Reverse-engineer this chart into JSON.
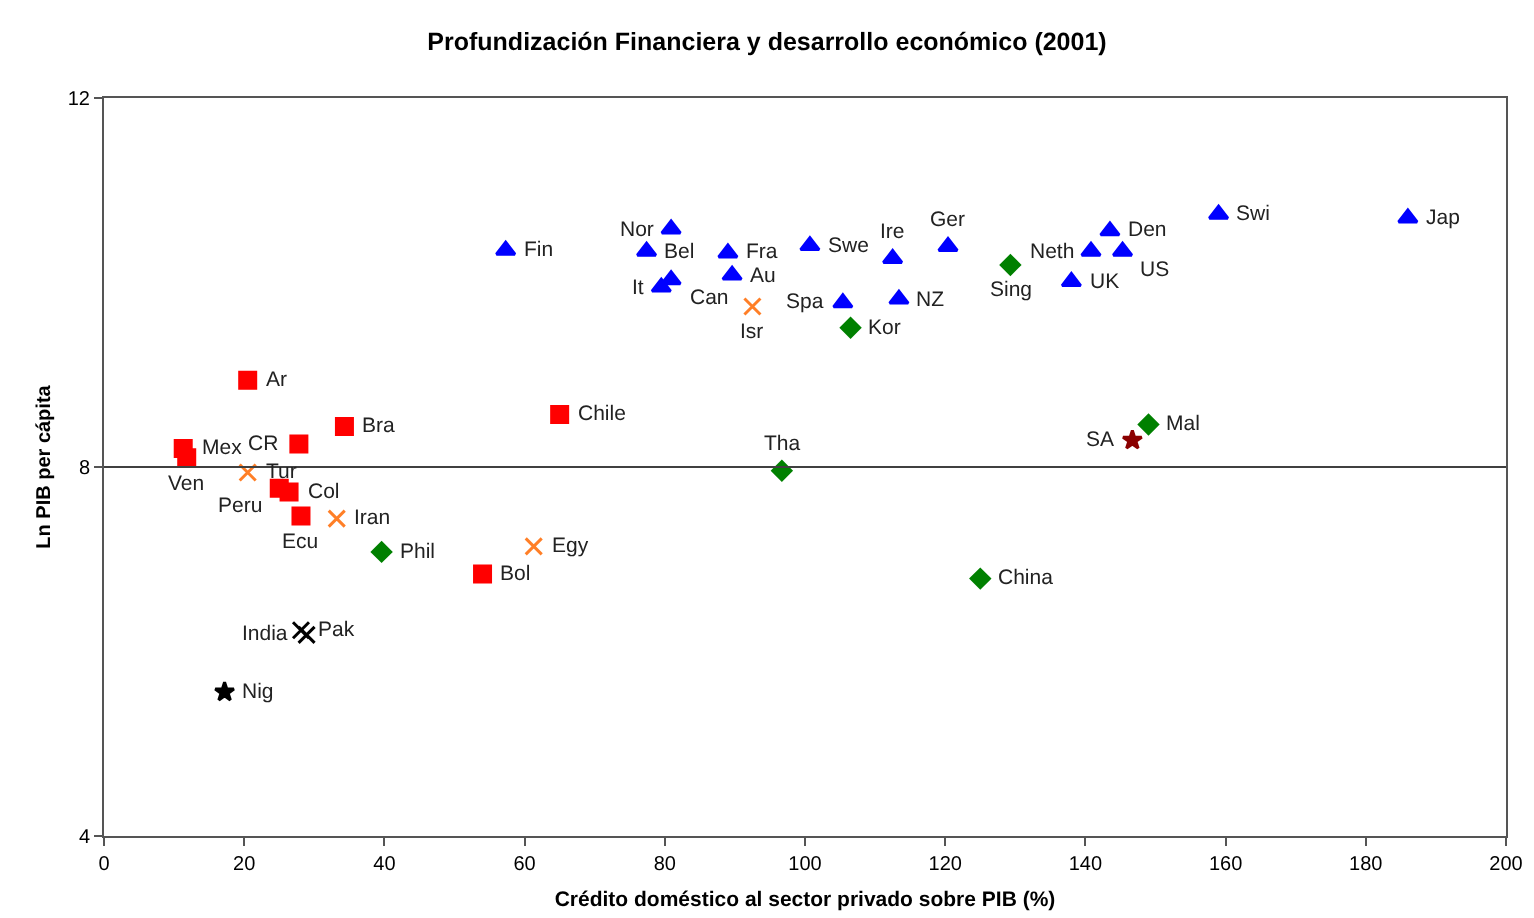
{
  "chart_data": {
    "type": "scatter",
    "title": "Profundización Financiera y desarrollo económico (2001)",
    "xlabel": "Crédito doméstico al sector privado sobre PIB (%)",
    "ylabel": "Ln PIB per cápita",
    "xlim": [
      0,
      200
    ],
    "xticks": [
      0,
      20,
      40,
      60,
      80,
      100,
      120,
      140,
      160,
      180,
      200
    ],
    "ylim": [
      4,
      12
    ],
    "yticks": [
      4,
      8,
      12
    ],
    "grid": false,
    "ref_lines": [
      {
        "axis": "y",
        "value": 8,
        "color": "#404040"
      }
    ],
    "series": [
      {
        "color": "#ff0000",
        "marker": "square",
        "x": [
          20.5,
          11.3,
          11.8,
          27.8,
          34.3,
          65.0,
          25.0,
          26.4,
          28.1,
          54.0
        ],
        "values": [
          8.94,
          8.2,
          8.1,
          8.25,
          8.44,
          8.57,
          7.77,
          7.73,
          7.47,
          6.84
        ]
      },
      {
        "color": "#0000ff",
        "marker": "triangle",
        "x": [
          57.3,
          77.4,
          80.9,
          79.5,
          80.9,
          89.0,
          89.6,
          100.7,
          105.4,
          112.5,
          113.4,
          120.4,
          138.0,
          140.8,
          143.5,
          145.3,
          159.0,
          186.0
        ],
        "values": [
          10.35,
          10.34,
          10.58,
          9.95,
          10.03,
          10.32,
          10.08,
          10.4,
          9.78,
          10.26,
          9.82,
          10.39,
          10.01,
          10.34,
          10.56,
          10.34,
          10.74,
          10.7
        ]
      },
      {
        "color": "#008000",
        "marker": "diamond",
        "x": [
          96.7,
          125.0,
          149.0,
          39.6,
          106.5,
          129.3
        ],
        "values": [
          7.96,
          6.79,
          8.46,
          7.08,
          9.51,
          10.19
        ]
      },
      {
        "color": "#ff7f27",
        "marker": "cross",
        "x": [
          20.5,
          33.2,
          61.3,
          92.5
        ],
        "values": [
          7.94,
          7.44,
          7.14,
          9.74
        ]
      },
      {
        "color": "#000000",
        "marker": "cross",
        "x": [
          28.1,
          28.9
        ],
        "values": [
          6.23,
          6.18
        ]
      },
      {
        "color": "#8b0000",
        "marker": "star",
        "x": [
          146.7
        ],
        "values": [
          8.29
        ]
      },
      {
        "color": "#000000",
        "marker": "star",
        "x": [
          17.2
        ],
        "values": [
          5.56
        ]
      }
    ],
    "annotations": [
      {
        "text": "Ar",
        "x": 20.5,
        "y": 8.94
      },
      {
        "text": "Mex",
        "x": 11.3,
        "y": 8.2
      },
      {
        "text": "Ven",
        "x": 11.8,
        "y": 8.1
      },
      {
        "text": "CR",
        "x": 27.8,
        "y": 8.25
      },
      {
        "text": "Bra",
        "x": 34.3,
        "y": 8.44
      },
      {
        "text": "Chile",
        "x": 65.0,
        "y": 8.57
      },
      {
        "text": "Peru",
        "x": 25.0,
        "y": 7.77
      },
      {
        "text": "Col",
        "x": 26.4,
        "y": 7.73
      },
      {
        "text": "Ecu",
        "x": 28.1,
        "y": 7.47
      },
      {
        "text": "Bol",
        "x": 54.0,
        "y": 6.84
      },
      {
        "text": "Fin",
        "x": 57.3,
        "y": 10.35
      },
      {
        "text": "Bel",
        "x": 77.4,
        "y": 10.34
      },
      {
        "text": "Nor",
        "x": 80.9,
        "y": 10.58
      },
      {
        "text": "It",
        "x": 79.5,
        "y": 9.95
      },
      {
        "text": "Can",
        "x": 80.9,
        "y": 10.03
      },
      {
        "text": "Fra",
        "x": 89.0,
        "y": 10.32
      },
      {
        "text": "Au",
        "x": 89.6,
        "y": 10.08
      },
      {
        "text": "Swe",
        "x": 100.7,
        "y": 10.4
      },
      {
        "text": "Spa",
        "x": 105.4,
        "y": 9.78
      },
      {
        "text": "Ire",
        "x": 112.5,
        "y": 10.26
      },
      {
        "text": "NZ",
        "x": 113.4,
        "y": 9.82
      },
      {
        "text": "Ger",
        "x": 120.4,
        "y": 10.39
      },
      {
        "text": "UK",
        "x": 138.0,
        "y": 10.01
      },
      {
        "text": "Neth",
        "x": 140.8,
        "y": 10.34
      },
      {
        "text": "Den",
        "x": 143.5,
        "y": 10.56
      },
      {
        "text": "US",
        "x": 145.3,
        "y": 10.34
      },
      {
        "text": "Swi",
        "x": 159.0,
        "y": 10.74
      },
      {
        "text": "Jap",
        "x": 186.0,
        "y": 10.7
      },
      {
        "text": "Tha",
        "x": 96.7,
        "y": 7.96
      },
      {
        "text": "China",
        "x": 125.0,
        "y": 6.79
      },
      {
        "text": "Mal",
        "x": 149.0,
        "y": 8.46
      },
      {
        "text": "Phil",
        "x": 39.6,
        "y": 7.08
      },
      {
        "text": "Kor",
        "x": 106.5,
        "y": 9.51
      },
      {
        "text": "Sing",
        "x": 129.3,
        "y": 10.19
      },
      {
        "text": "Tur",
        "x": 20.5,
        "y": 7.94
      },
      {
        "text": "Iran",
        "x": 33.2,
        "y": 7.44
      },
      {
        "text": "Egy",
        "x": 61.3,
        "y": 7.14
      },
      {
        "text": "Isr",
        "x": 92.5,
        "y": 9.74
      },
      {
        "text": "Pak",
        "x": 28.1,
        "y": 6.23
      },
      {
        "text": "India",
        "x": 28.9,
        "y": 6.18
      },
      {
        "text": "SA",
        "x": 146.7,
        "y": 8.29
      },
      {
        "text": "Nig",
        "x": 17.2,
        "y": 5.56
      }
    ]
  }
}
